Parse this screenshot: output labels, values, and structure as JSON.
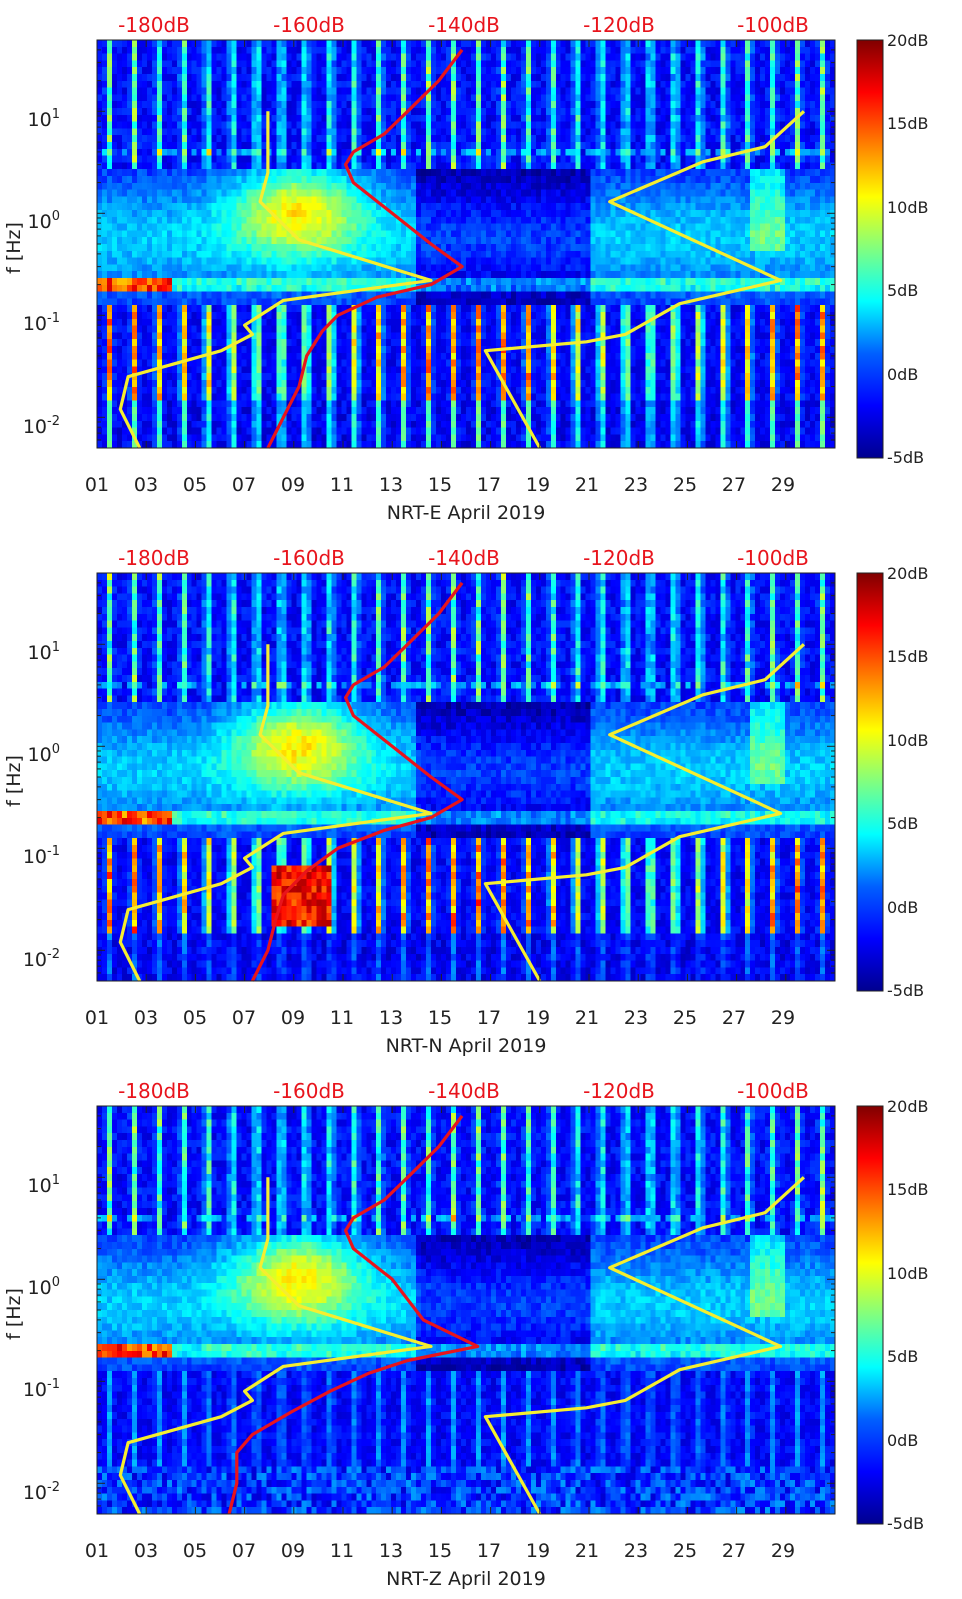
{
  "colors": {
    "psd_curve": "#e8141c",
    "noise_model": "#f5ee30",
    "top_scale_text": "#e8141c",
    "axis": "#222222",
    "colormap": [
      "#00008f",
      "#0000ff",
      "#0080ff",
      "#00ffff",
      "#80ff80",
      "#ffff00",
      "#ff8000",
      "#ff0000",
      "#800000"
    ]
  },
  "chart_data": [
    {
      "type": "heatmap",
      "station": "NRT-E",
      "title": "",
      "xlabel": "NRT-E April 2019",
      "ylabel": "f [Hz]",
      "x_tick_labels": [
        "01",
        "03",
        "05",
        "07",
        "09",
        "11",
        "13",
        "15",
        "17",
        "19",
        "21",
        "23",
        "25",
        "27",
        "29"
      ],
      "x_tick_values": [
        1,
        3,
        5,
        7,
        9,
        11,
        13,
        15,
        17,
        19,
        21,
        23,
        25,
        27,
        29
      ],
      "xlim": [
        1,
        31
      ],
      "y_scale": "log",
      "ylim": [
        0.005,
        50
      ],
      "y_tick_labels": [
        {
          "b": "10",
          "e": "-2"
        },
        {
          "b": "10",
          "e": "-1"
        },
        {
          "b": "10",
          "e": "0"
        },
        {
          "b": "10",
          "e": "1"
        }
      ],
      "y_tick_values": [
        0.01,
        0.1,
        1,
        10
      ],
      "colorbar": {
        "labels": [
          "20dB",
          "15dB",
          "10dB",
          "5dB",
          "0dB",
          "-5dB"
        ],
        "values": [
          20,
          15,
          10,
          5,
          0,
          -5
        ],
        "range": [
          -5,
          20
        ]
      },
      "top_axis": {
        "labels": [
          "-180dB",
          "-160dB",
          "-140dB",
          "-120dB",
          "-100dB"
        ],
        "values": [
          -180,
          -160,
          -140,
          -120,
          -100
        ],
        "range": [
          -190,
          -95
        ]
      },
      "psd_curve_db": [
        [
          -168,
          0.005
        ],
        [
          -166,
          0.01
        ],
        [
          -164,
          0.02
        ],
        [
          -163,
          0.04
        ],
        [
          -161,
          0.07
        ],
        [
          -159,
          0.1
        ],
        [
          -154,
          0.15
        ],
        [
          -147,
          0.2
        ],
        [
          -143,
          0.3
        ],
        [
          -147,
          0.5
        ],
        [
          -152,
          1
        ],
        [
          -157,
          2
        ],
        [
          -158,
          3
        ],
        [
          -157,
          4
        ],
        [
          -153,
          6
        ],
        [
          -150,
          10
        ],
        [
          -146,
          20
        ],
        [
          -143,
          40
        ]
      ],
      "noise_model_low_db": [
        [
          -184.5,
          0.005
        ],
        [
          -187,
          0.012
        ],
        [
          -186,
          0.025
        ],
        [
          -174,
          0.045
        ],
        [
          -170,
          0.065
        ],
        [
          -171,
          0.08
        ],
        [
          -166,
          0.14
        ],
        [
          -147,
          0.22
        ],
        [
          -164,
          0.55
        ],
        [
          -169,
          1.3
        ],
        [
          -168,
          2.5
        ],
        [
          -168,
          10
        ]
      ],
      "noise_model_high_db": [
        [
          -133,
          0.005
        ],
        [
          -140,
          0.045
        ],
        [
          -127,
          0.055
        ],
        [
          -122,
          0.065
        ],
        [
          -115,
          0.13
        ],
        [
          -102,
          0.22
        ],
        [
          -124,
          1.3
        ],
        [
          -112,
          3.2
        ],
        [
          -104,
          4.5
        ],
        [
          -99,
          10
        ]
      ]
    },
    {
      "type": "heatmap",
      "station": "NRT-N",
      "title": "",
      "xlabel": "NRT-N April 2019",
      "ylabel": "f [Hz]",
      "x_tick_labels": [
        "01",
        "03",
        "05",
        "07",
        "09",
        "11",
        "13",
        "15",
        "17",
        "19",
        "21",
        "23",
        "25",
        "27",
        "29"
      ],
      "x_tick_values": [
        1,
        3,
        5,
        7,
        9,
        11,
        13,
        15,
        17,
        19,
        21,
        23,
        25,
        27,
        29
      ],
      "xlim": [
        1,
        31
      ],
      "y_scale": "log",
      "ylim": [
        0.005,
        50
      ],
      "y_tick_labels": [
        {
          "b": "10",
          "e": "-2"
        },
        {
          "b": "10",
          "e": "-1"
        },
        {
          "b": "10",
          "e": "0"
        },
        {
          "b": "10",
          "e": "1"
        }
      ],
      "y_tick_values": [
        0.01,
        0.1,
        1,
        10
      ],
      "colorbar": {
        "labels": [
          "20dB",
          "15dB",
          "10dB",
          "5dB",
          "0dB",
          "-5dB"
        ],
        "values": [
          20,
          15,
          10,
          5,
          0,
          -5
        ],
        "range": [
          -5,
          20
        ]
      },
      "top_axis": {
        "labels": [
          "-180dB",
          "-160dB",
          "-140dB",
          "-120dB",
          "-100dB"
        ],
        "values": [
          -180,
          -160,
          -140,
          -120,
          -100
        ],
        "range": [
          -190,
          -95
        ]
      },
      "psd_curve_db": [
        [
          -170,
          0.005
        ],
        [
          -168,
          0.01
        ],
        [
          -167,
          0.02
        ],
        [
          -166,
          0.035
        ],
        [
          -163,
          0.06
        ],
        [
          -159,
          0.1
        ],
        [
          -153,
          0.15
        ],
        [
          -147,
          0.2
        ],
        [
          -143,
          0.3
        ],
        [
          -147,
          0.5
        ],
        [
          -152,
          1
        ],
        [
          -157,
          2
        ],
        [
          -158,
          3
        ],
        [
          -157,
          4
        ],
        [
          -153,
          6
        ],
        [
          -150,
          10
        ],
        [
          -146,
          20
        ],
        [
          -143,
          40
        ]
      ],
      "noise_model_low_db": [
        [
          -184.5,
          0.005
        ],
        [
          -187,
          0.012
        ],
        [
          -186,
          0.025
        ],
        [
          -174,
          0.045
        ],
        [
          -170,
          0.065
        ],
        [
          -171,
          0.08
        ],
        [
          -166,
          0.14
        ],
        [
          -147,
          0.22
        ],
        [
          -164,
          0.55
        ],
        [
          -169,
          1.3
        ],
        [
          -168,
          2.5
        ],
        [
          -168,
          10
        ]
      ],
      "noise_model_high_db": [
        [
          -133,
          0.005
        ],
        [
          -140,
          0.045
        ],
        [
          -127,
          0.055
        ],
        [
          -122,
          0.065
        ],
        [
          -115,
          0.13
        ],
        [
          -102,
          0.22
        ],
        [
          -124,
          1.3
        ],
        [
          -112,
          3.2
        ],
        [
          -104,
          4.5
        ],
        [
          -99,
          10
        ]
      ]
    },
    {
      "type": "heatmap",
      "station": "NRT-Z",
      "title": "",
      "xlabel": "NRT-Z April 2019",
      "ylabel": "f [Hz]",
      "x_tick_labels": [
        "01",
        "03",
        "05",
        "07",
        "09",
        "11",
        "13",
        "15",
        "17",
        "19",
        "21",
        "23",
        "25",
        "27",
        "29"
      ],
      "x_tick_values": [
        1,
        3,
        5,
        7,
        9,
        11,
        13,
        15,
        17,
        19,
        21,
        23,
        25,
        27,
        29
      ],
      "xlim": [
        1,
        31
      ],
      "y_scale": "log",
      "ylim": [
        0.005,
        50
      ],
      "y_tick_labels": [
        {
          "b": "10",
          "e": "-2"
        },
        {
          "b": "10",
          "e": "-1"
        },
        {
          "b": "10",
          "e": "0"
        },
        {
          "b": "10",
          "e": "1"
        }
      ],
      "y_tick_values": [
        0.01,
        0.1,
        1,
        10
      ],
      "colorbar": {
        "labels": [
          "20dB",
          "15dB",
          "10dB",
          "5dB",
          "0dB",
          "-5dB"
        ],
        "values": [
          20,
          15,
          10,
          5,
          0,
          -5
        ],
        "range": [
          -5,
          20
        ]
      },
      "top_axis": {
        "labels": [
          "-180dB",
          "-160dB",
          "-140dB",
          "-120dB",
          "-100dB"
        ],
        "values": [
          -180,
          -160,
          -140,
          -120,
          -100
        ],
        "range": [
          -190,
          -95
        ]
      },
      "psd_curve_db": [
        [
          -173,
          0.005
        ],
        [
          -172,
          0.01
        ],
        [
          -172,
          0.02
        ],
        [
          -170,
          0.03
        ],
        [
          -165,
          0.05
        ],
        [
          -160,
          0.08
        ],
        [
          -155,
          0.12
        ],
        [
          -150,
          0.16
        ],
        [
          -141,
          0.22
        ],
        [
          -148,
          0.4
        ],
        [
          -152,
          1
        ],
        [
          -157,
          2
        ],
        [
          -158,
          3
        ],
        [
          -157,
          4
        ],
        [
          -153,
          6
        ],
        [
          -150,
          10
        ],
        [
          -146,
          20
        ],
        [
          -143,
          40
        ]
      ],
      "noise_model_low_db": [
        [
          -184.5,
          0.005
        ],
        [
          -187,
          0.012
        ],
        [
          -186,
          0.025
        ],
        [
          -174,
          0.045
        ],
        [
          -170,
          0.065
        ],
        [
          -171,
          0.08
        ],
        [
          -166,
          0.14
        ],
        [
          -147,
          0.22
        ],
        [
          -164,
          0.55
        ],
        [
          -169,
          1.3
        ],
        [
          -168,
          2.5
        ],
        [
          -168,
          10
        ]
      ],
      "noise_model_high_db": [
        [
          -133,
          0.005
        ],
        [
          -140,
          0.045
        ],
        [
          -127,
          0.055
        ],
        [
          -122,
          0.065
        ],
        [
          -115,
          0.13
        ],
        [
          -102,
          0.22
        ],
        [
          -124,
          1.3
        ],
        [
          -112,
          3.2
        ],
        [
          -104,
          4.5
        ],
        [
          -99,
          10
        ]
      ]
    }
  ]
}
